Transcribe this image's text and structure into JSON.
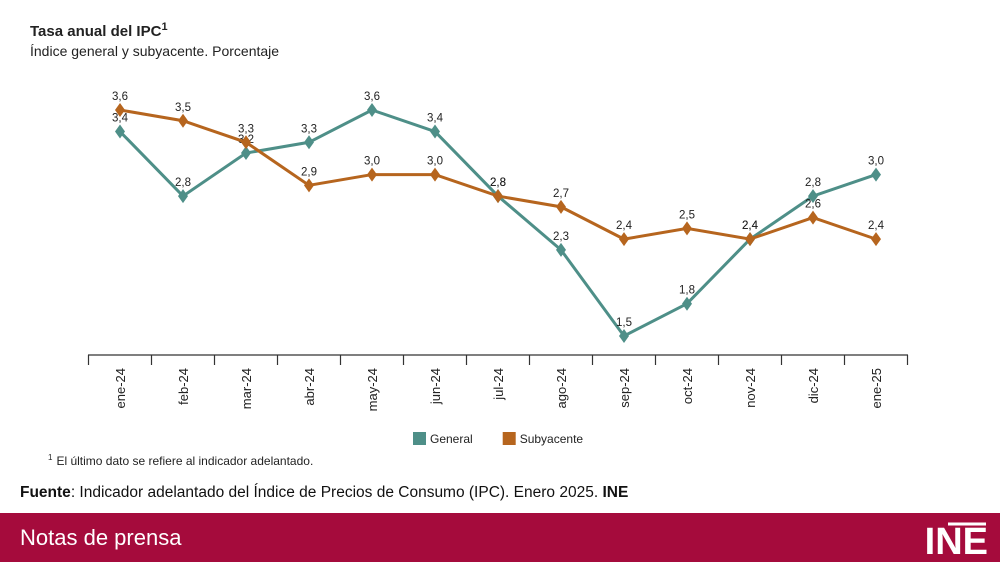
{
  "chart_data": {
    "type": "line",
    "title": "Tasa anual del IPC",
    "title_note": "1",
    "subtitle": "Índice general y subyacente. Porcentaje",
    "categories": [
      "ene-24",
      "feb-24",
      "mar-24",
      "abr-24",
      "may-24",
      "jun-24",
      "jul-24",
      "ago-24",
      "sep-24",
      "oct-24",
      "nov-24",
      "dic-24",
      "ene-25"
    ],
    "series": [
      {
        "name": "General",
        "color": "#4e8f88",
        "values": [
          3.4,
          2.8,
          3.2,
          3.3,
          3.6,
          3.4,
          2.8,
          2.3,
          1.5,
          1.8,
          2.4,
          2.8,
          3.0
        ],
        "value_labels": [
          "3,4",
          "2,8",
          "3,2",
          "3,3",
          "3,6",
          "3,4",
          "2,8",
          "2,3",
          "1,5",
          "1,8",
          "2,4",
          "2,8",
          "3,0"
        ]
      },
      {
        "name": "Subyacente",
        "color": "#b6651e",
        "values": [
          3.6,
          3.5,
          3.3,
          2.9,
          3.0,
          3.0,
          2.8,
          2.7,
          2.4,
          2.5,
          2.4,
          2.6,
          2.4
        ],
        "value_labels": [
          "3,6",
          "3,5",
          "3,3",
          "2,9",
          "3,0",
          "3,0",
          "2,8",
          "2,7",
          "2,4",
          "2,5",
          "2,4",
          "2,6",
          "2,4"
        ]
      }
    ],
    "footnote": {
      "marker": "1",
      "text": "El último dato se refiere al indicador adelantado."
    }
  },
  "source": {
    "label": "Fuente",
    "text": ": Indicador adelantado del Índice de Precios de Consumo (IPC). Enero 2025. ",
    "org": "INE"
  },
  "footer": {
    "title": "Notas de prensa",
    "logo": "INE"
  }
}
